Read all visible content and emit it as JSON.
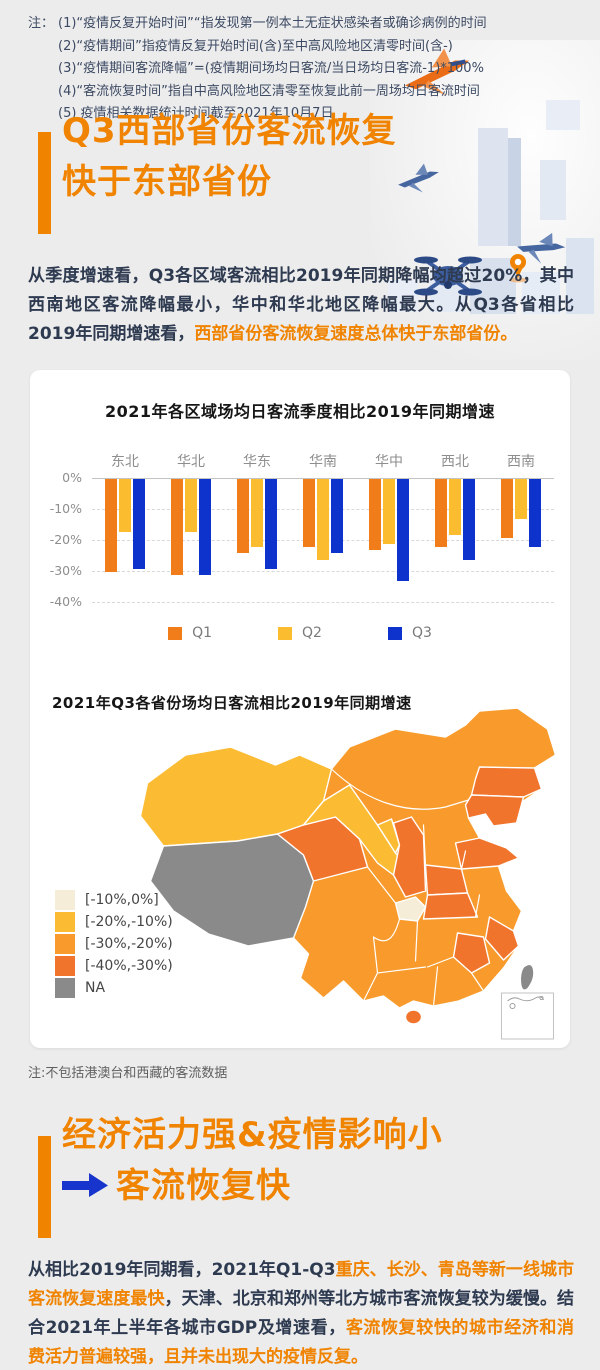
{
  "colors": {
    "accent_orange": "#F08300",
    "body_text": "#2E3A50",
    "note_text": "#3D4A63",
    "page_bg": "#ECECEC",
    "arrow_blue": "#1735CD"
  },
  "header_notes": {
    "prefix": "注：",
    "lines": [
      "(1)“疫情反复开始时间”“指发现第一例本土无症状感染者或确诊病例的时间",
      "(2)“疫情期间”指疫情反复开始时间(含)至中高风险地区清零时间(含-)",
      "(3)“疫情期间客流降幅”=(疫情期间场均日客流/当日场均日客流-1)*100%",
      "(4)“客流恢复时间”指自中高风险地区清零至恢复此前一周场均日客流时间",
      "(5)  疫情相关数据统计时间截至2021年10月7日"
    ]
  },
  "section1": {
    "title_line1": "Q3西部省份客流恢复",
    "title_line2": "快于东部省份",
    "paragraph": [
      {
        "text": "从季度增速看，Q3各区域客流相比2019年同期降幅均超过20%，其中西南地区客流降幅最小，华中和华北地区降幅最大。从Q3各省相比2019年同期增速看，",
        "em": false
      },
      {
        "text": "西部省份客流恢复速度总体快于东部省份。",
        "em": true
      }
    ]
  },
  "chart_data": [
    {
      "type": "bar",
      "title": "2021年各区域场均日客流季度相比2019年同期增速",
      "categories": [
        "东北",
        "华北",
        "华东",
        "华南",
        "华中",
        "西北",
        "西南"
      ],
      "series": [
        {
          "name": "Q1",
          "color": "#F07D1A",
          "values": [
            -30,
            -31,
            -24,
            -22,
            -23,
            -22,
            -19
          ]
        },
        {
          "name": "Q2",
          "color": "#FBBC30",
          "values": [
            -17,
            -17,
            -22,
            -26,
            -21,
            -18,
            -13
          ]
        },
        {
          "name": "Q3",
          "color": "#0E33CC",
          "values": [
            -29,
            -31,
            -29,
            -24,
            -33,
            -26,
            -22
          ]
        }
      ],
      "ylim": [
        -40,
        0
      ],
      "yticks": [
        0,
        -10,
        -20,
        -30,
        -40
      ],
      "ytick_labels": [
        "0%",
        "-10%",
        "-20%",
        "-30%",
        "-40%"
      ],
      "grid": "horizontal dashed",
      "legend_position": "bottom"
    },
    {
      "type": "choropleth-map",
      "title": "2021年Q3各省份场均日客流相比2019年同期增速",
      "legend": [
        {
          "label": "[-10%,0%]",
          "color": "#F5EDD8"
        },
        {
          "label": "[-20%,-10%)",
          "color": "#FBBB33"
        },
        {
          "label": "[-30%,-20%)",
          "color": "#F89B2C"
        },
        {
          "label": "[-40%,-30%)",
          "color": "#F1742C"
        },
        {
          "label": "NA",
          "color": "#8A8A8A"
        }
      ],
      "regions": [
        {
          "name": "新疆",
          "bucket": "[-20%,-10%)"
        },
        {
          "name": "甘肃",
          "bucket": "[-20%,-10%)"
        },
        {
          "name": "宁夏",
          "bucket": "[-20%,-10%)"
        },
        {
          "name": "西藏",
          "bucket": "NA"
        },
        {
          "name": "台湾",
          "bucket": "NA"
        },
        {
          "name": "青海",
          "bucket": "[-40%,-30%)"
        },
        {
          "name": "陕西",
          "bucket": "[-40%,-30%)"
        },
        {
          "name": "吉林",
          "bucket": "[-40%,-30%)"
        },
        {
          "name": "辽宁",
          "bucket": "[-40%,-30%)"
        },
        {
          "name": "山东",
          "bucket": "[-40%,-30%)"
        },
        {
          "name": "河南",
          "bucket": "[-40%,-30%)"
        },
        {
          "name": "湖北",
          "bucket": "[-40%,-30%)"
        },
        {
          "name": "浙江",
          "bucket": "[-40%,-30%)"
        },
        {
          "name": "江西",
          "bucket": "[-40%,-30%)"
        },
        {
          "name": "海南",
          "bucket": "[-40%,-30%)"
        },
        {
          "name": "重庆",
          "bucket": "[-10%,0%]"
        },
        {
          "name": "其他省份",
          "bucket": "[-30%,-20%)"
        }
      ]
    }
  ],
  "map_note": "注:不包括港澳台和西藏的客流数据",
  "section2": {
    "title_line1": "经济活力强&疫情影响小",
    "title_line2": "客流恢复快",
    "paragraph": [
      {
        "text": "从相比2019年同期看，2021年Q1-Q3",
        "em": false
      },
      {
        "text": "重庆、长沙、青岛等新一线城市客流恢复速度最快",
        "em": true
      },
      {
        "text": "，天津、北京和郑州等北方城市客流恢复较为缓慢。结合2021年上半年各城市GDP及增速看，",
        "em": false
      },
      {
        "text": "客流恢复较快的城市经济和消费活力普遍较强，且并未出现大的疫情反复。",
        "em": true
      }
    ]
  }
}
